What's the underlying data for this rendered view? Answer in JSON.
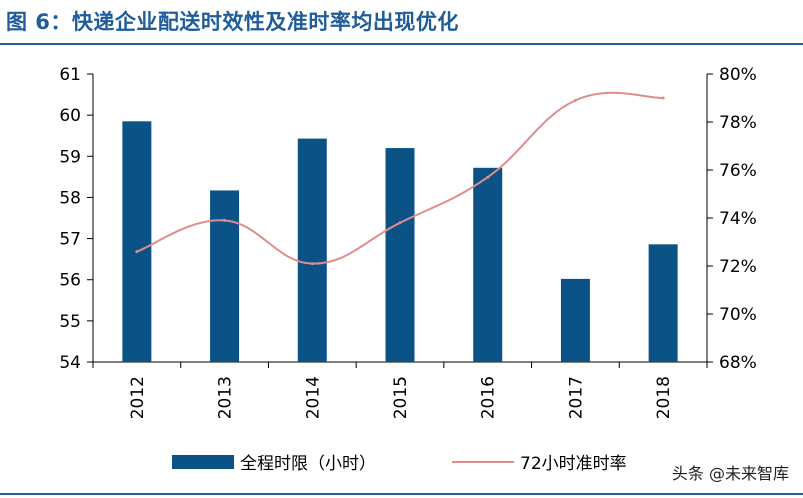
{
  "figure_title": "图 6：快递企业配送时效性及准时率均出现优化",
  "watermark": "头条 @未来智库",
  "chart_data": {
    "type": "bar+line",
    "categories": [
      "2012",
      "2013",
      "2014",
      "2015",
      "2016",
      "2017",
      "2018"
    ],
    "series": [
      {
        "name": "全程时限（小时）",
        "type": "bar",
        "axis": "left",
        "values": [
          59.85,
          58.17,
          59.43,
          59.2,
          58.72,
          56.02,
          56.86
        ],
        "color": "#0b5287"
      },
      {
        "name": "72小时准时率",
        "type": "line",
        "axis": "right",
        "values": [
          72.6,
          73.9,
          72.1,
          73.8,
          75.7,
          78.9,
          79.0
        ],
        "color": "#e08c8c"
      }
    ],
    "y_left": {
      "min": 54,
      "max": 61,
      "ticks": [
        "54",
        "55",
        "56",
        "57",
        "58",
        "59",
        "60",
        "61"
      ]
    },
    "y_right": {
      "min": 68,
      "max": 80,
      "ticks": [
        "68%",
        "70%",
        "72%",
        "74%",
        "76%",
        "78%",
        "80%"
      ]
    },
    "legend_position": "bottom",
    "grid": false
  }
}
